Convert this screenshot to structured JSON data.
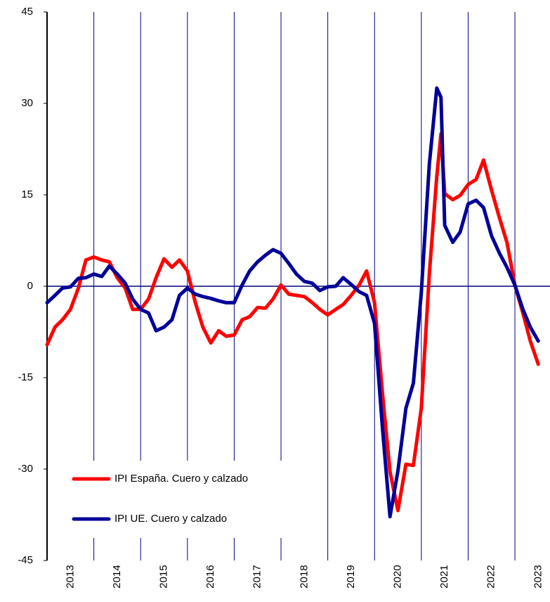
{
  "chart_data": {
    "type": "line",
    "x": [
      2013,
      2013.17,
      2013.33,
      2013.5,
      2013.67,
      2013.83,
      2014,
      2014.17,
      2014.33,
      2014.5,
      2014.67,
      2014.83,
      2015,
      2015.17,
      2015.33,
      2015.5,
      2015.67,
      2015.83,
      2016,
      2016.17,
      2016.33,
      2016.5,
      2016.67,
      2016.83,
      2017,
      2017.17,
      2017.33,
      2017.5,
      2017.67,
      2017.83,
      2018,
      2018.17,
      2018.33,
      2018.5,
      2018.67,
      2018.83,
      2019,
      2019.17,
      2019.33,
      2019.5,
      2019.67,
      2019.83,
      2020,
      2020.17,
      2020.33,
      2020.5,
      2020.67,
      2020.83,
      2021,
      2021.17,
      2021.33,
      2021.42,
      2021.5,
      2021.67,
      2021.83,
      2022,
      2022.17,
      2022.33,
      2022.5,
      2022.67,
      2022.83,
      2023,
      2023.17,
      2023.33,
      2023.5
    ],
    "series": [
      {
        "name": "IPI España. Cuero y calzado",
        "color": "#ff0000",
        "values": [
          -9.6,
          -6.7,
          -5.5,
          -3.8,
          -0.3,
          4.3,
          4.8,
          4.3,
          4.0,
          1.4,
          -0.3,
          -3.8,
          -3.8,
          -2.1,
          1.4,
          4.5,
          3.1,
          4.3,
          2.5,
          -2.7,
          -6.7,
          -9.3,
          -7.3,
          -8.2,
          -8.0,
          -5.5,
          -5.0,
          -3.5,
          -3.6,
          -2.1,
          0.2,
          -1.3,
          -1.5,
          -1.7,
          -2.7,
          -3.8,
          -4.7,
          -3.8,
          -3.0,
          -1.5,
          0.2,
          2.5,
          -2.7,
          -17.7,
          -30.4,
          -36.8,
          -29.2,
          -29.4,
          -20,
          2,
          18,
          25,
          15.2,
          14.2,
          14.9,
          16.7,
          17.5,
          20.7,
          15.8,
          11.2,
          7.2,
          0.2,
          -4.4,
          -9,
          -12.8
        ]
      },
      {
        "name": "IPI UE. Cuero y calzado",
        "color": "#000099",
        "values": [
          -2.7,
          -1.5,
          -0.3,
          -0.1,
          1.3,
          1.4,
          2.0,
          1.6,
          3.3,
          2.0,
          0.5,
          -2.1,
          -3.8,
          -4.4,
          -7.3,
          -6.7,
          -5.5,
          -1.5,
          -0.3,
          -1.3,
          -1.7,
          -2.0,
          -2.4,
          -2.7,
          -2.7,
          0.2,
          2.5,
          4.0,
          5.1,
          6.0,
          5.4,
          3.7,
          2.0,
          0.8,
          0.5,
          -0.7,
          -0.1,
          0,
          1.4,
          0.3,
          -0.9,
          -1.5,
          -6.1,
          -23.4,
          -37.8,
          -30.3,
          -20,
          -15.9,
          -1,
          20,
          32.5,
          31,
          10,
          7.2,
          8.9,
          13.5,
          14.1,
          12.9,
          8.3,
          5.4,
          3.1,
          0.2,
          -3.8,
          -6.7,
          -9.0
        ]
      }
    ],
    "xlim": [
      2013,
      2023.75
    ],
    "xticks": [
      {
        "value": 2013,
        "label": "2013"
      },
      {
        "value": 2014,
        "label": "2014"
      },
      {
        "value": 2015,
        "label": "2015"
      },
      {
        "value": 2016,
        "label": "2016"
      },
      {
        "value": 2017,
        "label": "2017"
      },
      {
        "value": 2018,
        "label": "2018"
      },
      {
        "value": 2019,
        "label": "2019"
      },
      {
        "value": 2020,
        "label": "2020"
      },
      {
        "value": 2021,
        "label": "2021"
      },
      {
        "value": 2022,
        "label": "2022"
      },
      {
        "value": 2023,
        "label": "2023"
      }
    ],
    "ylim": [
      -45,
      45
    ],
    "yticks": [
      -45,
      -30,
      -15,
      0,
      15,
      30,
      45
    ],
    "grid": true,
    "legend": "lower left"
  }
}
